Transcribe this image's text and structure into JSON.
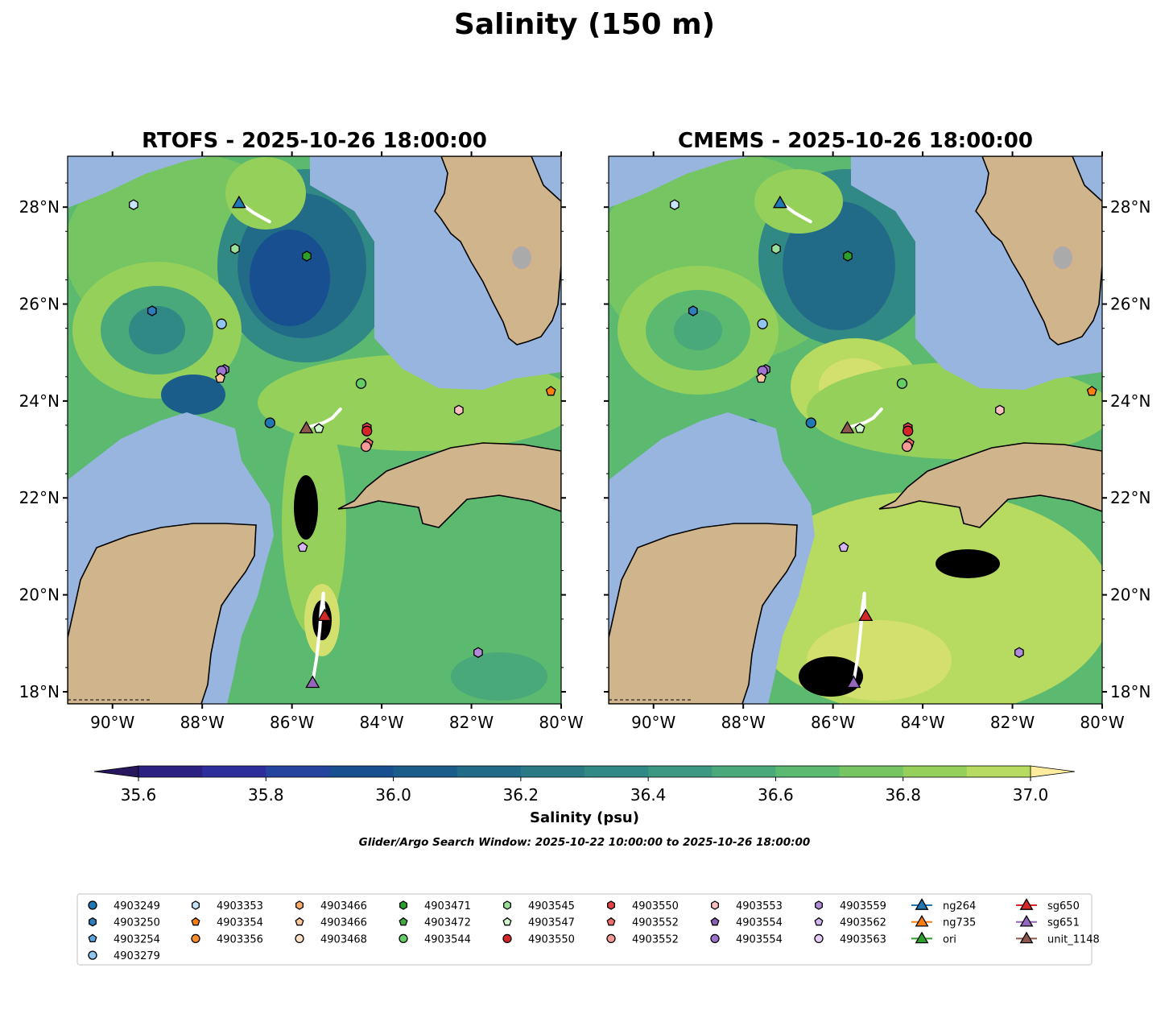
{
  "chart_data": {
    "type": "heatmap",
    "title": "Salinity (150 m)",
    "panels": [
      {
        "title": "RTOFS - 2025-10-26 18:00:00",
        "variant": "rtofs"
      },
      {
        "title": "CMEMS - 2025-10-26 18:00:00",
        "variant": "cmems"
      }
    ],
    "lon_range": [
      -91,
      -80
    ],
    "lat_range": [
      17.75,
      29.05
    ],
    "x_ticks": [
      "90°W",
      "88°W",
      "86°W",
      "84°W",
      "82°W",
      "80°W"
    ],
    "x_tick_values": [
      -90,
      -88,
      -86,
      -84,
      -82,
      -80
    ],
    "y_ticks": [
      "18°N",
      "20°N",
      "22°N",
      "24°N",
      "26°N",
      "28°N"
    ],
    "y_tick_values": [
      18,
      20,
      22,
      24,
      26,
      28
    ],
    "colorbar": {
      "label": "Salinity (psu)",
      "ticks": [
        "35.6",
        "35.8",
        "36.0",
        "36.2",
        "36.4",
        "36.6",
        "36.8",
        "37.0"
      ],
      "tick_values": [
        35.6,
        35.8,
        36.0,
        36.2,
        36.4,
        36.6,
        36.8,
        37.0
      ],
      "levels": [
        35.6,
        35.7,
        35.8,
        35.9,
        36.0,
        36.1,
        36.2,
        36.3,
        36.4,
        36.5,
        36.6,
        36.7,
        36.8,
        36.9,
        37.0
      ],
      "colors": [
        "#2c2183",
        "#2d2d9c",
        "#25449e",
        "#174f91",
        "#1a5d8b",
        "#226b88",
        "#2a7a86",
        "#318985",
        "#3b9981",
        "#49a97a",
        "#5cb970",
        "#76c563",
        "#95d05a",
        "#b7da60",
        "#d4e06e"
      ],
      "under_color": "#27175f",
      "over_color": "#fdec9e"
    },
    "subtitle": "Glider/Argo Search Window: 2025-10-22 10:00:00 to 2025-10-26 18:00:00",
    "markers": [
      {
        "name": "4903353",
        "shape": "hexagon",
        "color": "#c6e4fb",
        "lon": -89.53,
        "lat": 28.05
      },
      {
        "name": "4903545",
        "shape": "hexagon",
        "color": "#98e09a",
        "lon": -87.27,
        "lat": 27.14
      },
      {
        "name": "4903471",
        "shape": "hexagon",
        "color": "#2ca02c",
        "lon": -85.67,
        "lat": 26.99
      },
      {
        "name": "4903250",
        "shape": "hexagon",
        "color": "#2e7dbf",
        "lon": -89.12,
        "lat": 25.86
      },
      {
        "name": "4903279",
        "shape": "circle",
        "color": "#8ec5ee",
        "lon": -87.57,
        "lat": 25.59
      },
      {
        "name": "4903559",
        "shape": "hexagon",
        "color": "#a77ed3",
        "lon": -87.5,
        "lat": 24.65
      },
      {
        "name": "4903554",
        "shape": "circle",
        "color": "#9e74cf",
        "lon": -87.57,
        "lat": 24.62
      },
      {
        "name": "4903466",
        "shape": "pentagon",
        "color": "#fdc89a",
        "lon": -87.6,
        "lat": 24.47
      },
      {
        "name": "4903544",
        "shape": "circle",
        "color": "#66cc66",
        "lon": -84.46,
        "lat": 24.36
      },
      {
        "name": "4903354",
        "shape": "pentagon",
        "color": "#ff7f0e",
        "lon": -80.23,
        "lat": 24.2
      },
      {
        "name": "4903553",
        "shape": "hexagon",
        "color": "#fbc1c1",
        "lon": -82.28,
        "lat": 23.81
      },
      {
        "name": "4903249",
        "shape": "circle",
        "color": "#1f77b4",
        "lon": -86.49,
        "lat": 23.55
      },
      {
        "name": "4903547",
        "shape": "pentagon",
        "color": "#d0f7cc",
        "lon": -85.4,
        "lat": 23.43
      },
      {
        "name": "4903550",
        "shape": "hexagon",
        "color": "#e04444",
        "lon": -84.33,
        "lat": 23.45
      },
      {
        "name": "4903550",
        "shape": "circle",
        "color": "#d62728",
        "lon": -84.33,
        "lat": 23.38
      },
      {
        "name": "4903552",
        "shape": "pentagon",
        "color": "#ec6b6b",
        "lon": -84.3,
        "lat": 23.13
      },
      {
        "name": "4903552",
        "shape": "circle",
        "color": "#f59b96",
        "lon": -84.35,
        "lat": 23.06
      },
      {
        "name": "4903562",
        "shape": "pentagon",
        "color": "#d6b6f0",
        "lon": -85.76,
        "lat": 20.98
      },
      {
        "name": "4903559",
        "shape": "hexagon",
        "color": "#b08cd8",
        "lon": -81.85,
        "lat": 18.81
      }
    ],
    "gliders": [
      {
        "name": "ng264",
        "color": "#1f77b4",
        "lon": -87.18,
        "lat": 28.1,
        "track": [
          [
            -87.18,
            28.1
          ],
          [
            -86.85,
            27.88
          ],
          [
            -86.5,
            27.7
          ]
        ]
      },
      {
        "name": "unit_1148",
        "color": "#8c564b",
        "lon": -85.68,
        "lat": 23.45,
        "track": [
          [
            -85.68,
            23.45
          ],
          [
            -85.3,
            23.55
          ],
          [
            -85.1,
            23.65
          ],
          [
            -84.92,
            23.83
          ]
        ]
      },
      {
        "name": "sg650",
        "color": "#d62728",
        "lon": -85.27,
        "lat": 19.58,
        "track": [
          [
            -85.27,
            19.58
          ],
          [
            -85.3,
            19.8
          ],
          [
            -85.3,
            20.03
          ]
        ]
      },
      {
        "name": "sg651",
        "color": "#9467bd",
        "lon": -85.54,
        "lat": 18.2,
        "track": [
          [
            -85.54,
            18.2
          ],
          [
            -85.45,
            18.7
          ],
          [
            -85.38,
            19.3
          ],
          [
            -85.35,
            19.7
          ],
          [
            -85.3,
            20.03
          ]
        ]
      }
    ],
    "legend": {
      "columns": [
        [
          {
            "label": "4903249",
            "shape": "circle",
            "color": "#1f77b4"
          },
          {
            "label": "4903250",
            "shape": "hexagon",
            "color": "#2e7dbf"
          },
          {
            "label": "4903254",
            "shape": "pentagon",
            "color": "#5aa5dc"
          },
          {
            "label": "4903279",
            "shape": "circle",
            "color": "#8ec5ee"
          }
        ],
        [
          {
            "label": "4903353",
            "shape": "hexagon",
            "color": "#c6e4fb"
          },
          {
            "label": "4903354",
            "shape": "pentagon",
            "color": "#ff7f0e"
          },
          {
            "label": "4903356",
            "shape": "circle",
            "color": "#ff8c2a"
          }
        ],
        [
          {
            "label": "4903466",
            "shape": "hexagon",
            "color": "#fdae6b"
          },
          {
            "label": "4903466",
            "shape": "pentagon",
            "color": "#fdc89a"
          },
          {
            "label": "4903468",
            "shape": "circle",
            "color": "#fde0c5"
          }
        ],
        [
          {
            "label": "4903471",
            "shape": "hexagon",
            "color": "#2ca02c"
          },
          {
            "label": "4903472",
            "shape": "pentagon",
            "color": "#41ab41"
          },
          {
            "label": "4903544",
            "shape": "circle",
            "color": "#66cc66"
          }
        ],
        [
          {
            "label": "4903545",
            "shape": "hexagon",
            "color": "#98e09a"
          },
          {
            "label": "4903547",
            "shape": "pentagon",
            "color": "#d0f7cc"
          },
          {
            "label": "4903550",
            "shape": "circle",
            "color": "#d62728"
          }
        ],
        [
          {
            "label": "4903550",
            "shape": "hexagon",
            "color": "#e04444"
          },
          {
            "label": "4903552",
            "shape": "pentagon",
            "color": "#ec6b6b"
          },
          {
            "label": "4903552",
            "shape": "circle",
            "color": "#f59b96"
          }
        ],
        [
          {
            "label": "4903553",
            "shape": "hexagon",
            "color": "#fbc1c1"
          },
          {
            "label": "4903554",
            "shape": "pentagon",
            "color": "#8a5fb8"
          },
          {
            "label": "4903554",
            "shape": "circle",
            "color": "#9e74cf"
          }
        ],
        [
          {
            "label": "4903559",
            "shape": "hexagon",
            "color": "#b08cd8"
          },
          {
            "label": "4903562",
            "shape": "pentagon",
            "color": "#d6b6f0"
          },
          {
            "label": "4903563",
            "shape": "circle",
            "color": "#e6cdf7"
          }
        ],
        [
          {
            "label": "ng264",
            "shape": "triangle",
            "color": "#1f77b4"
          },
          {
            "label": "ng735",
            "shape": "triangle",
            "color": "#ff7f0e"
          },
          {
            "label": "ori",
            "shape": "triangle",
            "color": "#2ca02c"
          }
        ],
        [
          {
            "label": "sg650",
            "shape": "triangle",
            "color": "#d62728"
          },
          {
            "label": "sg651",
            "shape": "triangle",
            "color": "#9467bd"
          },
          {
            "label": "unit_1148",
            "shape": "triangle",
            "color": "#8c564b"
          }
        ]
      ]
    }
  }
}
